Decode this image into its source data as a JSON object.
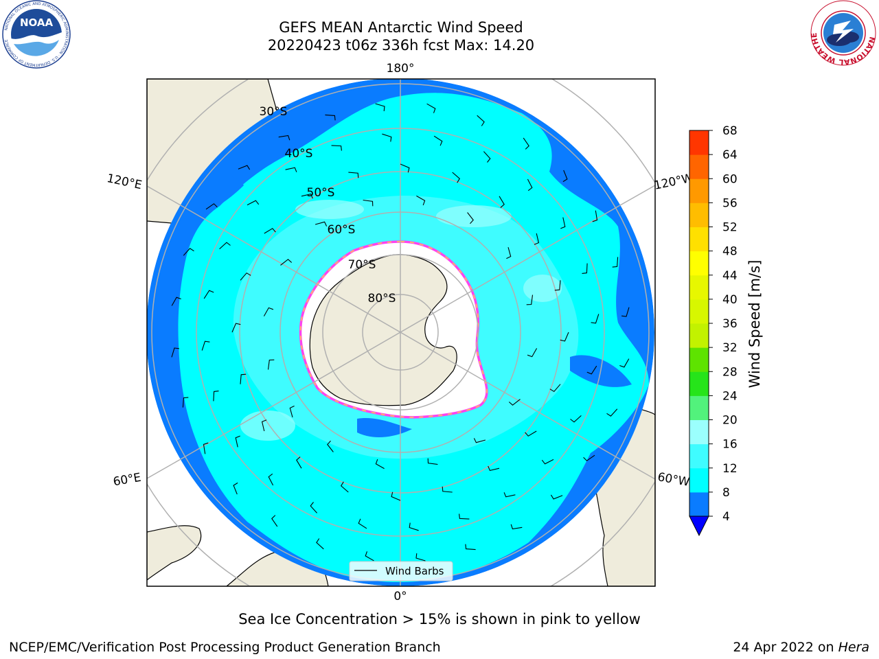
{
  "header": {
    "title_line1": "GEFS MEAN Antarctic Wind Speed",
    "title_line2": "20220423 t06z 336h fcst   Max: 14.20"
  },
  "logos": {
    "left": {
      "text": "NOAA",
      "ring_text": "NATIONAL OCEANIC AND ATMOSPHERIC ADMINISTRATION · U.S. DEPARTMENT OF COMMERCE"
    },
    "right": {
      "ring_text": "NATIONAL WEATHER SERVICE"
    }
  },
  "map": {
    "projection": "south-polar-stereographic",
    "longitude_labels": [
      {
        "id": "lon-180",
        "text": "180°"
      },
      {
        "id": "lon-0",
        "text": "0°"
      },
      {
        "id": "lon-120e",
        "text": "120°E"
      },
      {
        "id": "lon-120w",
        "text": "120°W"
      },
      {
        "id": "lon-60e",
        "text": "60°E"
      },
      {
        "id": "lon-60w",
        "text": "60°W"
      }
    ],
    "latitude_labels": [
      {
        "id": "lat-30",
        "text": "30°S"
      },
      {
        "id": "lat-40",
        "text": "40°S"
      },
      {
        "id": "lat-50",
        "text": "50°S"
      },
      {
        "id": "lat-60",
        "text": "60°S"
      },
      {
        "id": "lat-70",
        "text": "70°S"
      },
      {
        "id": "lat-80",
        "text": "80°S"
      }
    ],
    "legend_label": "Wind Barbs"
  },
  "colorbar": {
    "label": "Wind Speed [m/s]",
    "ticks": [
      "4",
      "8",
      "12",
      "16",
      "20",
      "24",
      "28",
      "32",
      "36",
      "40",
      "44",
      "48",
      "52",
      "56",
      "60",
      "64",
      "68"
    ],
    "colors": [
      "#0a7cff",
      "#00ffff",
      "#3ffcff",
      "#9bfffd",
      "#52f27c",
      "#26e41a",
      "#5ee300",
      "#c2f200",
      "#d7f700",
      "#e7f700",
      "#ffff00",
      "#ffe000",
      "#ffbd00",
      "#ff9900",
      "#ff6500",
      "#ff3600",
      "#ff0000"
    ],
    "extend_color": "#0000ff"
  },
  "footer": {
    "caption": "Sea Ice Concentration > 15% is shown in pink to yellow",
    "credit_left": "NCEP/EMC/Verification Post Processing Product Generation Branch",
    "date_text": "24 Apr 2022 on ",
    "machine_name": "Hera"
  }
}
